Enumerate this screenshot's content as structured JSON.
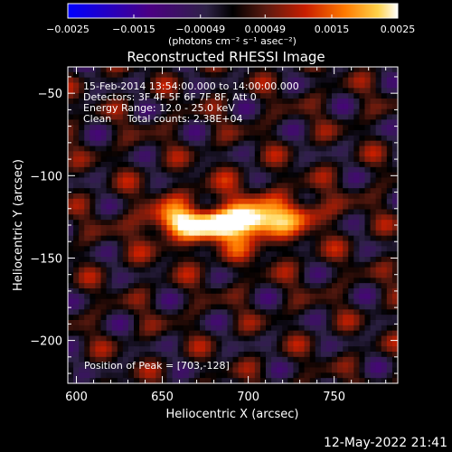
{
  "chart_data": {
    "type": "heatmap",
    "title": "Reconstructed RHESSI Image",
    "xlabel": "Heliocentric X (arcsec)",
    "ylabel": "Heliocentric Y (arcsec)",
    "xlim": [
      595,
      787
    ],
    "ylim": [
      -226,
      -34
    ],
    "xticks": [
      600,
      650,
      700,
      750
    ],
    "xtick_labels": [
      "600",
      "650",
      "700",
      "750"
    ],
    "yticks": [
      -50,
      -100,
      -150,
      -200
    ],
    "ytick_labels": [
      "−50",
      "−100",
      "−150",
      "−200"
    ],
    "colorbar": {
      "range": [
        -0.0025,
        0.0025
      ],
      "ticks": [
        -0.0025,
        -0.0015,
        -0.00049,
        0.00049,
        0.0015,
        0.0025
      ],
      "tick_labels": [
        "−0.0025",
        "−0.0015",
        "−0.00049",
        "0.00049",
        "0.0015",
        "0.0025"
      ],
      "unit_label": "(photons cm⁻² s⁻¹ asec⁻²)",
      "colors": [
        "#0000ff",
        "#4b0082",
        "#3a2a5a",
        "#000000",
        "#5a1a10",
        "#c81e00",
        "#ff7a00",
        "#ffd24a",
        "#ffffff"
      ]
    },
    "annotations": [
      "15-Feb-2014 13:54:00.000 to 14:00:00.000",
      "Detectors: 3F 4F 5F 6F 7F 8F, Att 0",
      "Energy Range: 12.0 - 25.0 keV",
      "Clean     Total counts: 2.38E+04"
    ],
    "peak_label": "Position of Peak = [703,-128]",
    "sources": [
      {
        "x": 703,
        "y": -128,
        "peak": 0.0025
      },
      {
        "x": 680,
        "y": -130,
        "peak": 0.0019
      },
      {
        "x": 655,
        "y": -128,
        "peak": 0.0017
      },
      {
        "x": 730,
        "y": -122,
        "peak": 0.0012
      }
    ],
    "grid": false,
    "legend": "none"
  },
  "footer_date": "12-May-2022 21:41"
}
